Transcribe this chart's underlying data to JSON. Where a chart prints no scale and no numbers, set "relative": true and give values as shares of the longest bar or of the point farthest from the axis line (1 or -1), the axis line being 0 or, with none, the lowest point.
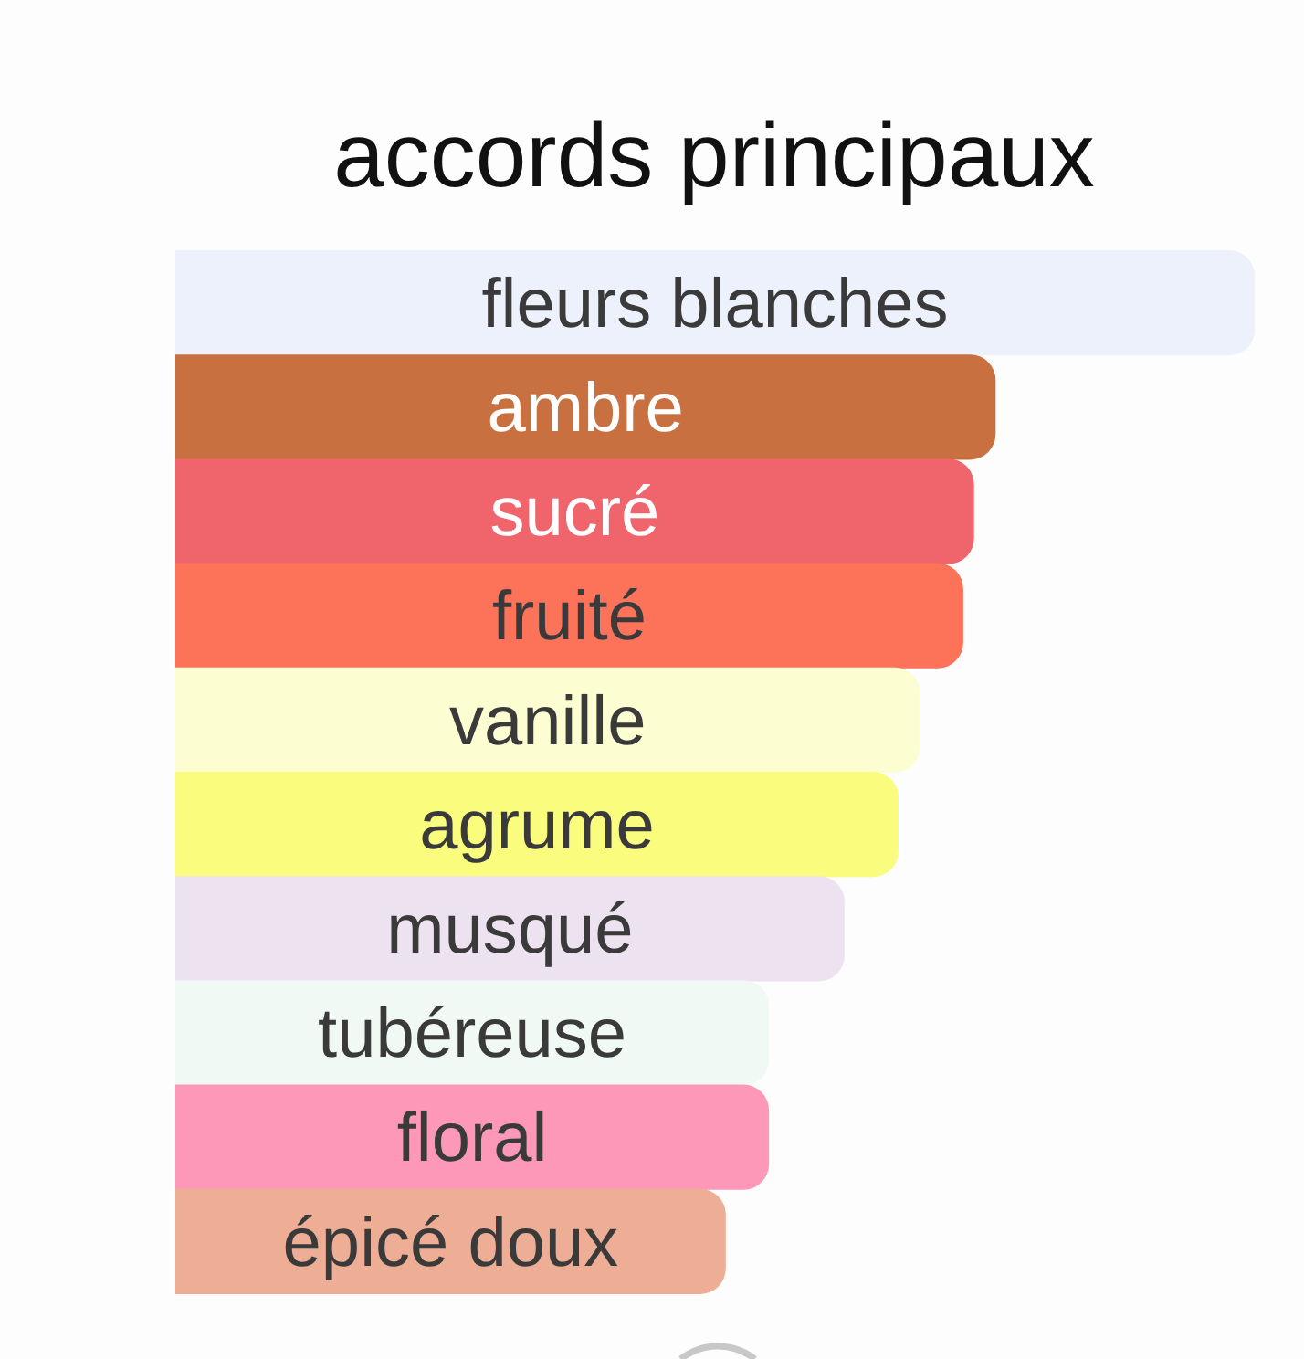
{
  "chart_data": {
    "type": "bar",
    "orientation": "horizontal",
    "relative": true,
    "title": "accords principaux",
    "categories": [
      "fleurs blanches",
      "ambre",
      "sucré",
      "fruité",
      "vanille",
      "agrume",
      "musqué",
      "tubéreuse",
      "floral",
      "épicé doux"
    ],
    "values": [
      1,
      0.76,
      0.74,
      0.73,
      0.69,
      0.67,
      0.62,
      0.55,
      0.55,
      0.51
    ],
    "colors": [
      "#ecf1fb",
      "#c87040",
      "#f0646c",
      "#fc735a",
      "#fcfed2",
      "#f9fc7c",
      "#ede2ef",
      "#f0f9f4",
      "#fd98b8",
      "#eeae96"
    ]
  }
}
